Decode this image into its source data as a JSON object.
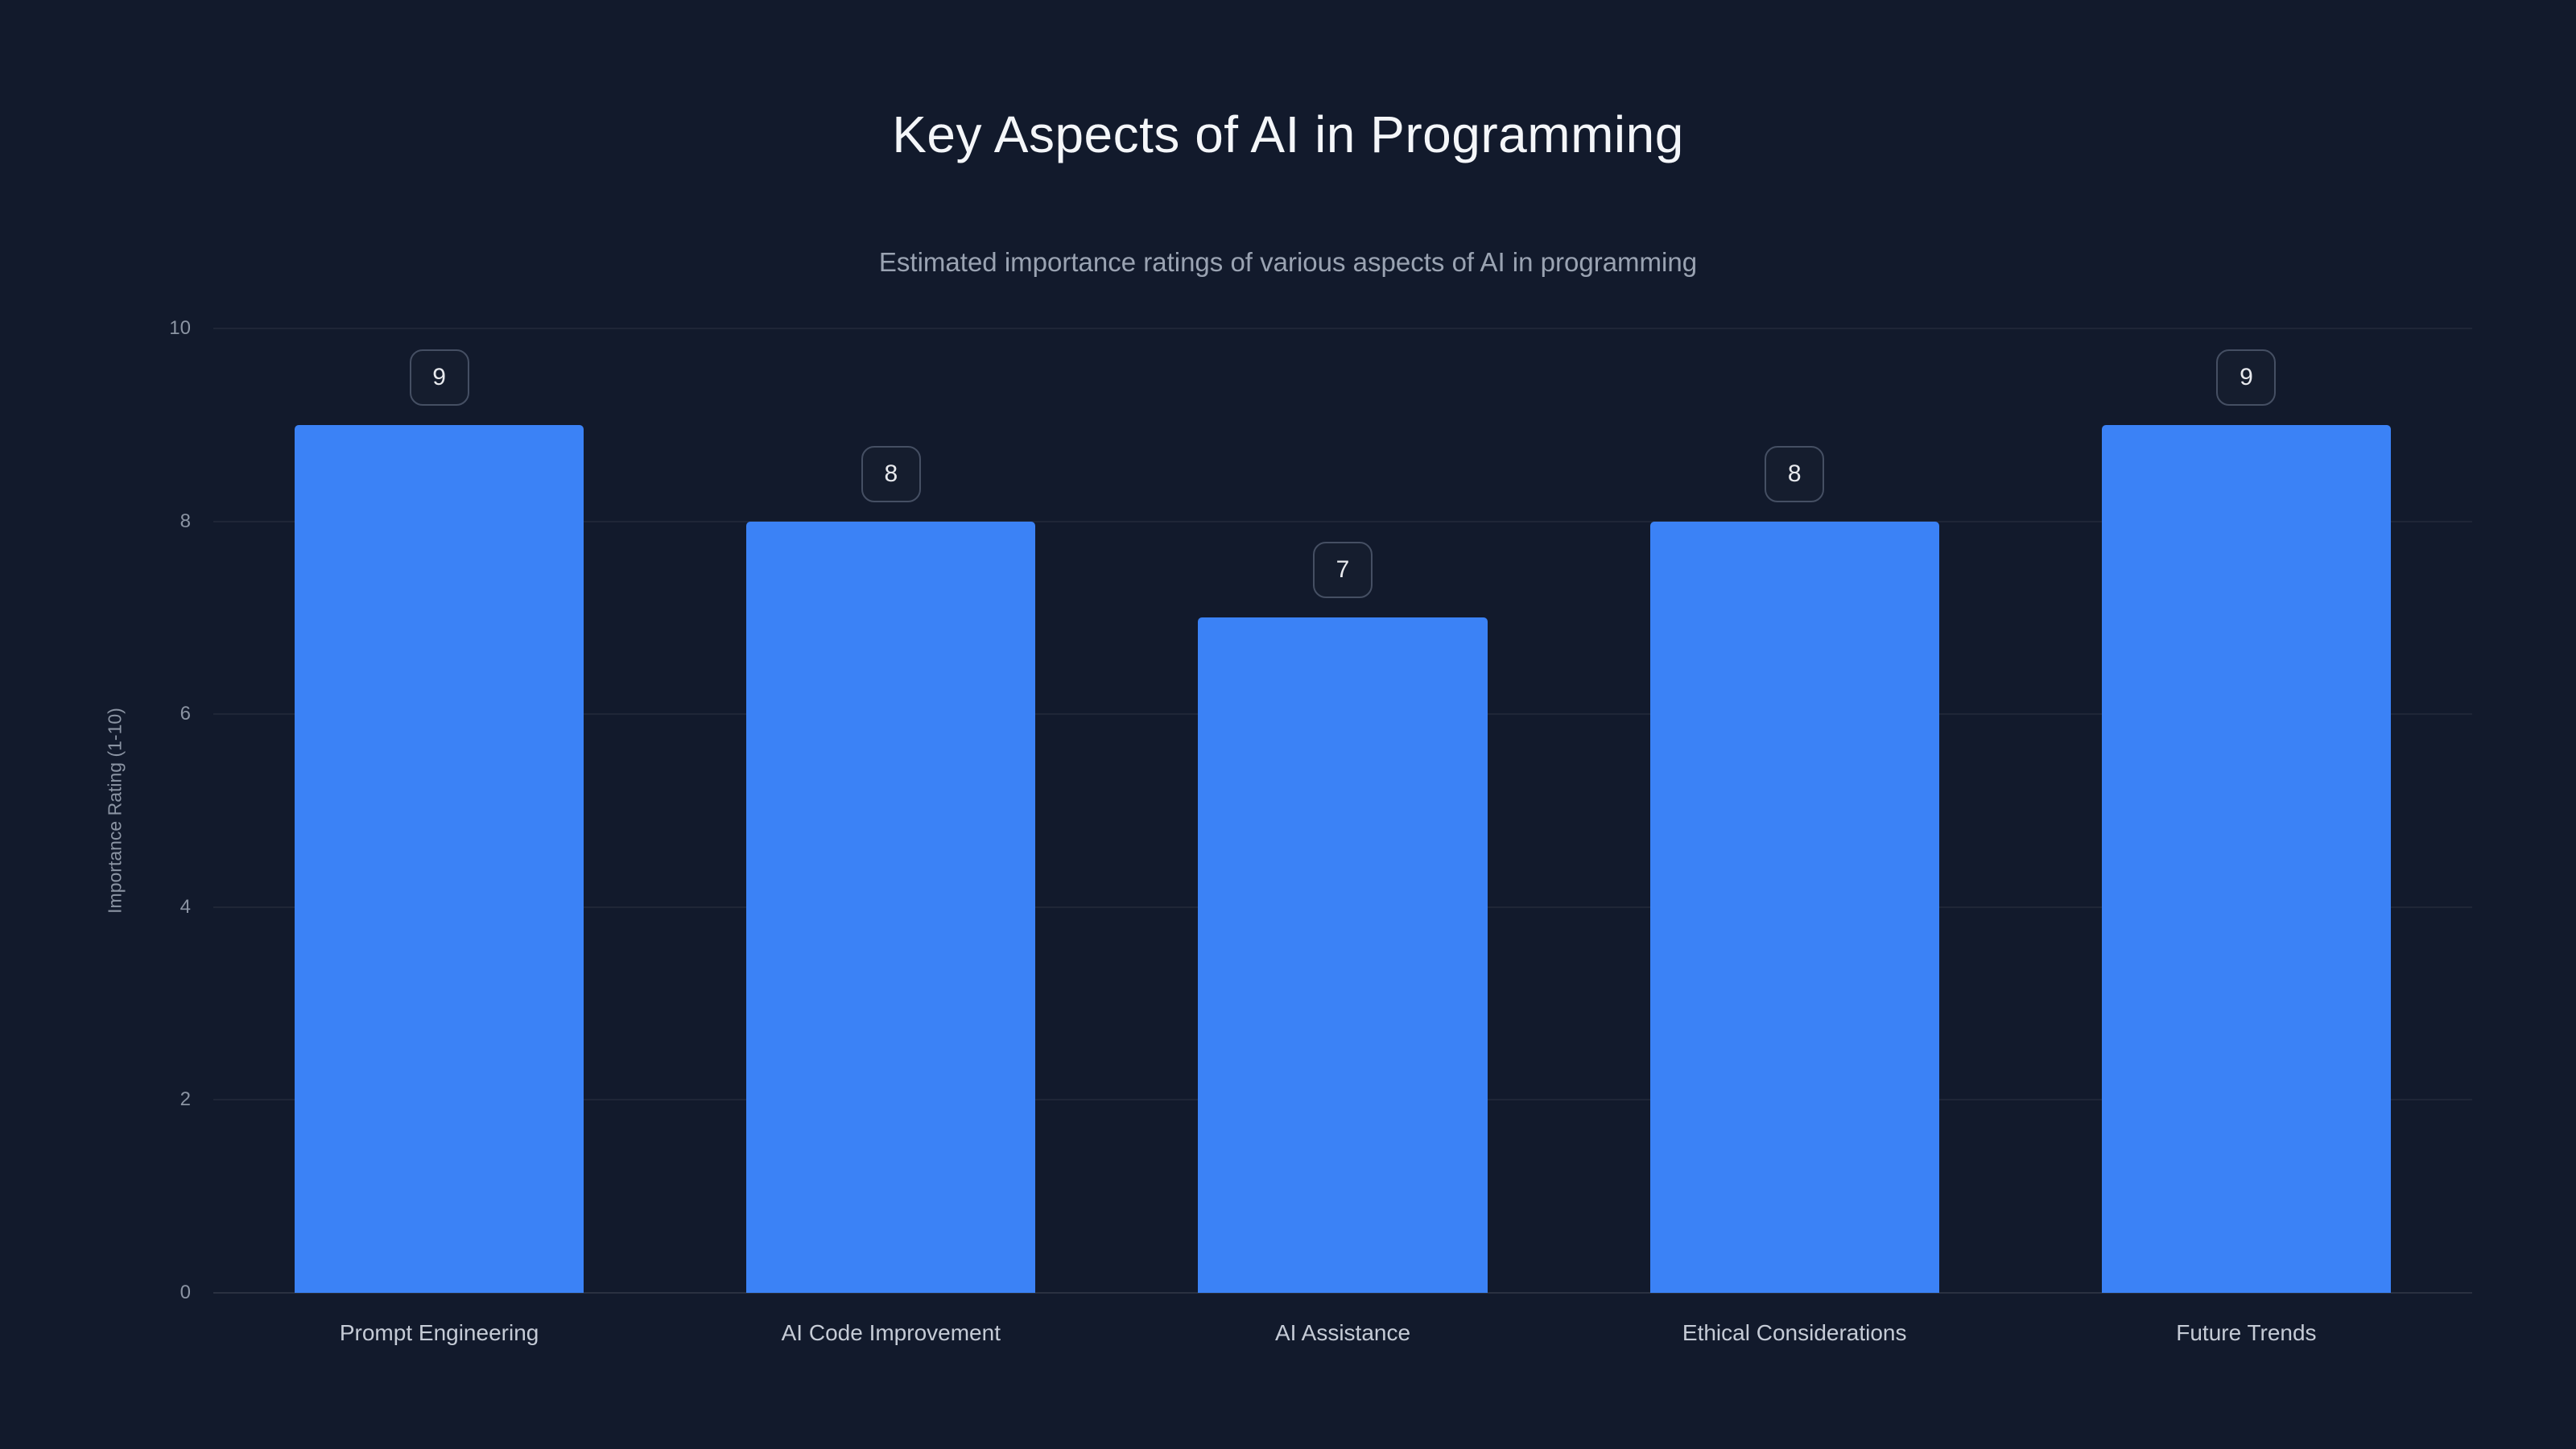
{
  "header": {
    "title": "Key Aspects of AI in Programming",
    "subtitle": "Estimated importance ratings of various aspects of AI in programming"
  },
  "chart_data": {
    "type": "bar",
    "title": "Key Aspects of AI in Programming",
    "subtitle": "Estimated importance ratings of various aspects of AI in programming",
    "categories": [
      "Prompt Engineering",
      "AI Code Improvement",
      "AI Assistance",
      "Ethical Considerations",
      "Future Trends"
    ],
    "values": [
      9,
      8,
      7,
      8,
      9
    ],
    "data_labels": [
      "9",
      "8",
      "7",
      "8",
      "9"
    ],
    "xlabel": "",
    "ylabel": "Importance Rating (1-10)",
    "ylim": [
      0,
      10
    ],
    "yticks": [
      0,
      2,
      4,
      6,
      8,
      10
    ],
    "grid": true,
    "legend": false,
    "bar_color": "#3b82f6",
    "background_color": "#121a2c",
    "title_color": "#f4f6f9",
    "subtitle_color": "#9aa3b2"
  }
}
